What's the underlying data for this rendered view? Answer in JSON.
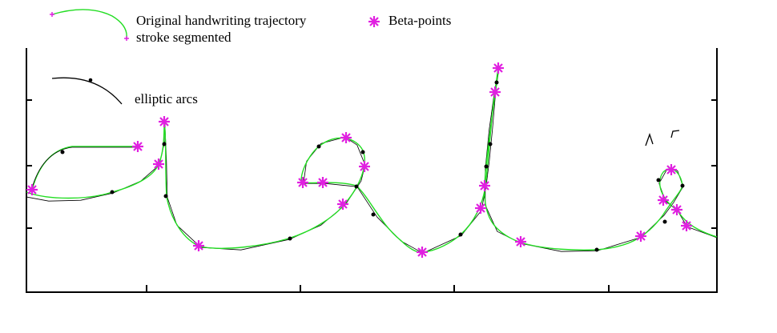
{
  "legend": {
    "trajectory": "Original handwriting trajectory",
    "segmented": "stroke segmented",
    "beta_points": "Beta-points",
    "elliptic_arcs": "elliptic arcs"
  }
}
